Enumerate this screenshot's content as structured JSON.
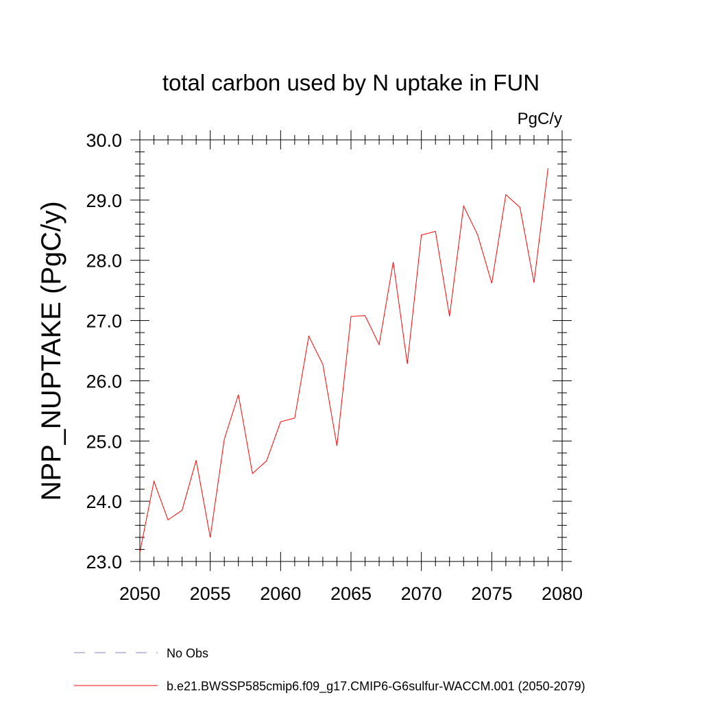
{
  "chart_data": {
    "type": "line",
    "title": "total carbon used by N uptake in FUN",
    "units": "PgC/y",
    "ylabel": "NPP_NUPTAKE  (PgC/y)",
    "xlabel": "",
    "xlim": [
      2050,
      2080
    ],
    "ylim": [
      23.0,
      30.0
    ],
    "x_ticks": [
      2050,
      2055,
      2060,
      2065,
      2070,
      2075,
      2080
    ],
    "x_tick_labels": [
      "2050",
      "2055",
      "2060",
      "2065",
      "2070",
      "2075",
      "2080"
    ],
    "y_ticks": [
      23.0,
      24.0,
      25.0,
      26.0,
      27.0,
      28.0,
      29.0,
      30.0
    ],
    "y_tick_labels": [
      "23.0",
      "24.0",
      "25.0",
      "26.0",
      "27.0",
      "28.0",
      "29.0",
      "30.0"
    ],
    "grid": false,
    "legend_position": "bottom",
    "series": [
      {
        "name": "b.e21.BWSSP585cmip6.f09_g17.CMIP6-G6sulfur-WACCM.001 (2050-2079)",
        "color": "#ff0000",
        "dash": "solid",
        "x": [
          2050,
          2051,
          2052,
          2053,
          2054,
          2055,
          2056,
          2057,
          2058,
          2059,
          2060,
          2061,
          2062,
          2063,
          2064,
          2065,
          2066,
          2067,
          2068,
          2069,
          2070,
          2071,
          2072,
          2073,
          2074,
          2075,
          2076,
          2077,
          2078,
          2079
        ],
        "y": [
          23.15,
          24.33,
          23.69,
          23.85,
          24.68,
          23.4,
          25.03,
          25.77,
          24.46,
          24.67,
          25.32,
          25.38,
          26.74,
          26.27,
          24.92,
          27.07,
          27.08,
          26.6,
          27.97,
          26.28,
          28.42,
          28.48,
          27.07,
          28.9,
          28.42,
          27.62,
          29.09,
          28.88,
          27.63,
          29.53
        ]
      }
    ],
    "legend": [
      {
        "label": "No Obs",
        "color": "#8a7fd6",
        "dash": "dashed"
      },
      {
        "label": "b.e21.BWSSP585cmip6.f09_g17.CMIP6-G6sulfur-WACCM.001 (2050-2079)",
        "color": "#ff0000",
        "dash": "solid"
      }
    ]
  }
}
